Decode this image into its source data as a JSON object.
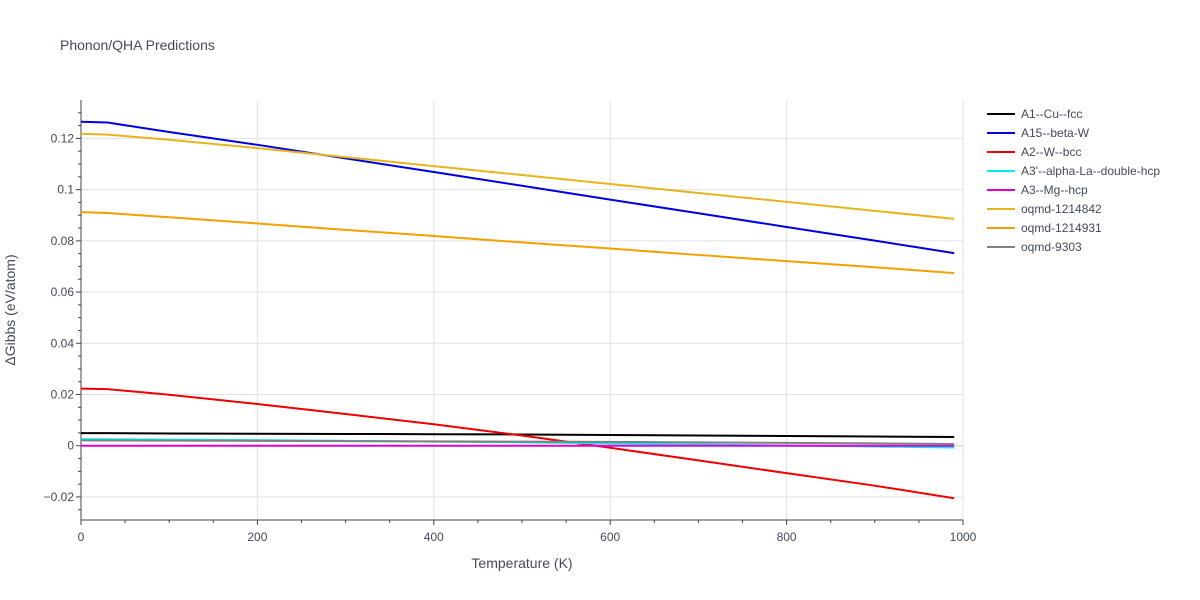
{
  "chart_data": {
    "type": "line",
    "title": "Phonon/QHA Predictions",
    "xlabel": "Temperature (K)",
    "ylabel": "ΔGibbs (eV/atom)",
    "xlim": [
      0,
      1000
    ],
    "ylim": [
      -0.029,
      0.135
    ],
    "x_ticks": [
      0,
      200,
      400,
      600,
      800,
      1000
    ],
    "x_tick_labels": [
      "0",
      "200",
      "400",
      "600",
      "800",
      "1000"
    ],
    "y_ticks": [
      -0.02,
      0,
      0.02,
      0.04,
      0.06,
      0.08,
      0.1,
      0.12
    ],
    "y_tick_labels": [
      "−0.02",
      "0",
      "0.02",
      "0.04",
      "0.06",
      "0.08",
      "0.1",
      "0.12"
    ],
    "grid": true,
    "legend_position": "right",
    "series": [
      {
        "name": "A1--Cu--fcc",
        "color": "#000000",
        "x": [
          0,
          30,
          100,
          200,
          300,
          400,
          500,
          600,
          700,
          800,
          900,
          990
        ],
        "y": [
          0.0049,
          0.0049,
          0.0048,
          0.0047,
          0.0046,
          0.0045,
          0.0044,
          0.0042,
          0.004,
          0.0038,
          0.0036,
          0.0034
        ]
      },
      {
        "name": "A15--beta-W",
        "color": "#0000dd",
        "x": [
          0,
          30,
          100,
          200,
          300,
          400,
          500,
          600,
          700,
          800,
          900,
          990
        ],
        "y": [
          0.1265,
          0.1262,
          0.1225,
          0.1175,
          0.1122,
          0.1069,
          0.1015,
          0.0961,
          0.0908,
          0.0854,
          0.0801,
          0.0752
        ]
      },
      {
        "name": "A2--W--bcc",
        "color": "#ee0000",
        "x": [
          0,
          30,
          100,
          200,
          300,
          400,
          500,
          600,
          700,
          800,
          900,
          990
        ],
        "y": [
          0.0223,
          0.0221,
          0.0199,
          0.0163,
          0.0124,
          0.0084,
          0.004,
          -0.0008,
          -0.0057,
          -0.0107,
          -0.0156,
          -0.0205
        ]
      },
      {
        "name": "A3'--alpha-La--double-hcp",
        "color": "#00eeee",
        "x": [
          0,
          100,
          200,
          300,
          400,
          500,
          600,
          700,
          800,
          900,
          990
        ],
        "y": [
          0.0026,
          0.0024,
          0.0022,
          0.0019,
          0.0016,
          0.0013,
          0.0009,
          0.0005,
          0.0001,
          -0.0003,
          -0.0007
        ]
      },
      {
        "name": "A3--Mg--hcp",
        "color": "#dd00dd",
        "x": [
          0,
          200,
          400,
          600,
          800,
          990
        ],
        "y": [
          0.0,
          0.0,
          0.0,
          0.0,
          0.0,
          0.0
        ]
      },
      {
        "name": "oqmd-1214842",
        "color": "#e8b41c",
        "x": [
          0,
          30,
          100,
          200,
          300,
          400,
          500,
          600,
          700,
          800,
          900,
          990
        ],
        "y": [
          0.1218,
          0.1215,
          0.1195,
          0.1162,
          0.1127,
          0.1092,
          0.1057,
          0.1022,
          0.0987,
          0.0952,
          0.0917,
          0.0886
        ]
      },
      {
        "name": "oqmd-1214931",
        "color": "#f5a000",
        "x": [
          0,
          30,
          100,
          200,
          300,
          400,
          500,
          600,
          700,
          800,
          900,
          990
        ],
        "y": [
          0.0912,
          0.0909,
          0.0892,
          0.0868,
          0.0843,
          0.0819,
          0.0794,
          0.077,
          0.0745,
          0.0721,
          0.0697,
          0.0674
        ]
      },
      {
        "name": "oqmd-9303",
        "color": "#808080",
        "x": [
          0,
          100,
          200,
          300,
          400,
          500,
          600,
          700,
          800,
          900,
          990
        ],
        "y": [
          0.0021,
          0.002,
          0.0019,
          0.0018,
          0.0017,
          0.0016,
          0.0015,
          0.0013,
          0.0011,
          0.0009,
          0.0007
        ]
      }
    ]
  }
}
